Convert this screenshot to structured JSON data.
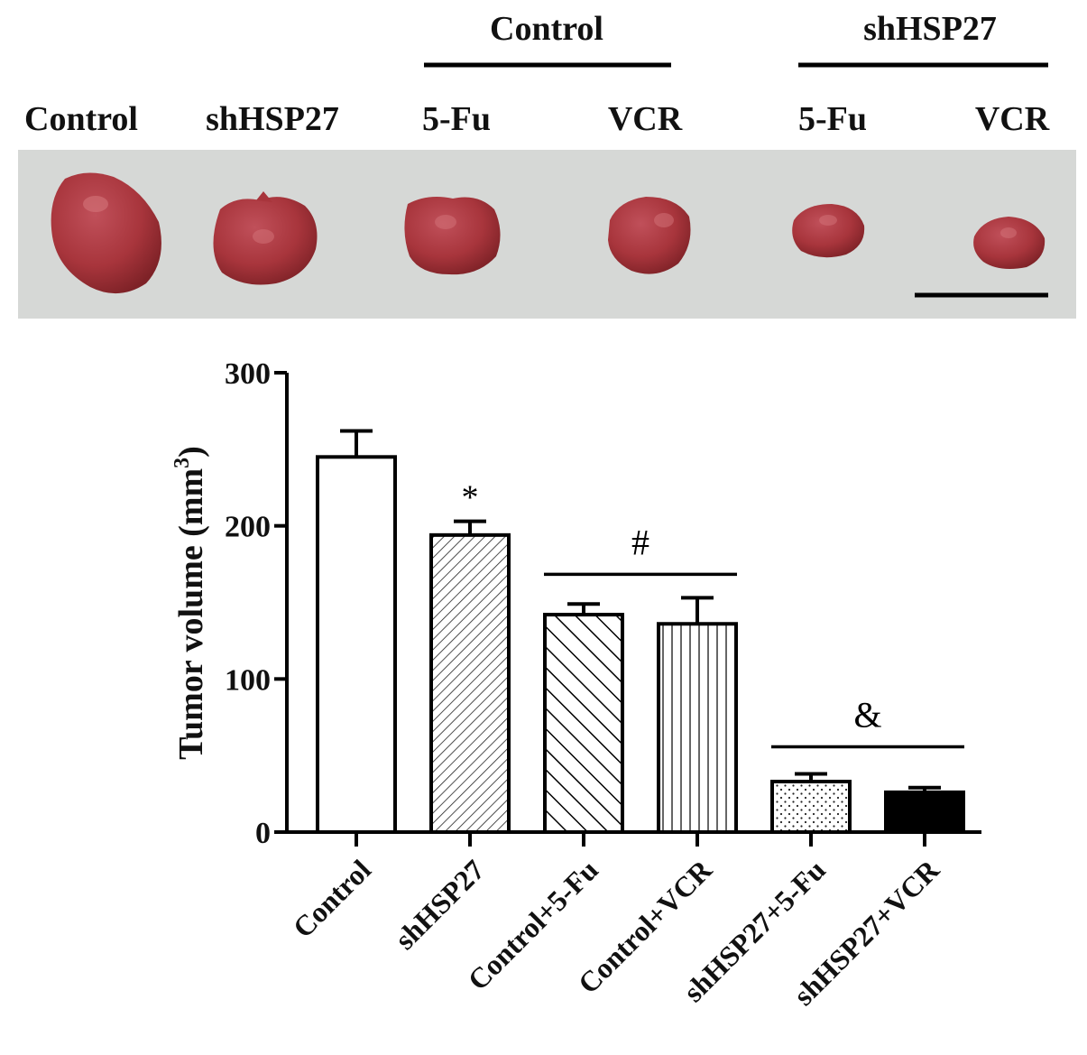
{
  "photo_panel": {
    "group_labels": [
      {
        "text": "Control"
      },
      {
        "text": "shHSP27"
      }
    ],
    "sample_labels": [
      "Control",
      "shHSP27",
      "5-Fu",
      "VCR",
      "5-Fu",
      "VCR"
    ],
    "background_color": "#d6d8d6",
    "tumor_color": "#a8353c"
  },
  "chart_data": {
    "type": "bar",
    "categories": [
      "Control",
      "shHSP27",
      "Control+5-Fu",
      "Control+VCR",
      "shHSP27+5-Fu",
      "shHSP27+VCR"
    ],
    "values": [
      245,
      194,
      142,
      136,
      33,
      26
    ],
    "errors": [
      17,
      9,
      7,
      17,
      5,
      3
    ],
    "fills": [
      "none",
      "diagonal-hatch-fine",
      "diagonal-hatch-coarse",
      "vertical-lines",
      "dots",
      "solid-black"
    ],
    "ylabel_text": "Tumor volume (mm",
    "ylabel_sup": "3",
    "ylabel_close": ")",
    "ylim": [
      0,
      300
    ],
    "yticks": [
      0,
      100,
      200,
      300
    ],
    "annotations": {
      "star": {
        "text": "*",
        "bar": 1
      },
      "hash": {
        "text": "#",
        "bars": [
          2,
          3
        ]
      },
      "amp": {
        "text": "&",
        "bars": [
          4,
          5
        ]
      }
    },
    "grid": false
  }
}
